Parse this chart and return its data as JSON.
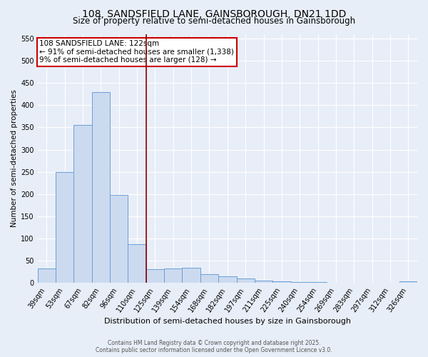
{
  "title": "108, SANDSFIELD LANE, GAINSBOROUGH, DN21 1DD",
  "subtitle": "Size of property relative to semi-detached houses in Gainsborough",
  "xlabel": "Distribution of semi-detached houses by size in Gainsborough",
  "ylabel": "Number of semi-detached properties",
  "categories": [
    "39sqm",
    "53sqm",
    "67sqm",
    "82sqm",
    "96sqm",
    "110sqm",
    "125sqm",
    "139sqm",
    "154sqm",
    "168sqm",
    "182sqm",
    "197sqm",
    "211sqm",
    "225sqm",
    "240sqm",
    "254sqm",
    "269sqm",
    "283sqm",
    "297sqm",
    "312sqm",
    "326sqm"
  ],
  "values": [
    33,
    250,
    355,
    430,
    198,
    88,
    32,
    33,
    35,
    20,
    16,
    10,
    6,
    4,
    2,
    2,
    1,
    0,
    1,
    0,
    4
  ],
  "bar_color": "#ccdaf0",
  "bar_edge_color": "#6b9fd4",
  "ylim": [
    0,
    560
  ],
  "yticks": [
    0,
    50,
    100,
    150,
    200,
    250,
    300,
    350,
    400,
    450,
    500,
    550
  ],
  "property_bin_index": 6,
  "annotation_title": "108 SANDSFIELD LANE: 122sqm",
  "annotation_line1": "← 91% of semi-detached houses are smaller (1,338)",
  "annotation_line2": "9% of semi-detached houses are larger (128) →",
  "vline_color": "#8b0000",
  "annotation_box_facecolor": "#ffffff",
  "annotation_box_edgecolor": "#cc0000",
  "footer_line1": "Contains HM Land Registry data © Crown copyright and database right 2025.",
  "footer_line2": "Contains public sector information licensed under the Open Government Licence v3.0.",
  "background_color": "#e8eef8",
  "plot_bg_color": "#e8eef8",
  "grid_color": "#ffffff",
  "title_fontsize": 10,
  "subtitle_fontsize": 8.5,
  "xlabel_fontsize": 8,
  "ylabel_fontsize": 7.5,
  "tick_fontsize": 7,
  "footer_fontsize": 5.5,
  "annotation_fontsize": 7.5
}
